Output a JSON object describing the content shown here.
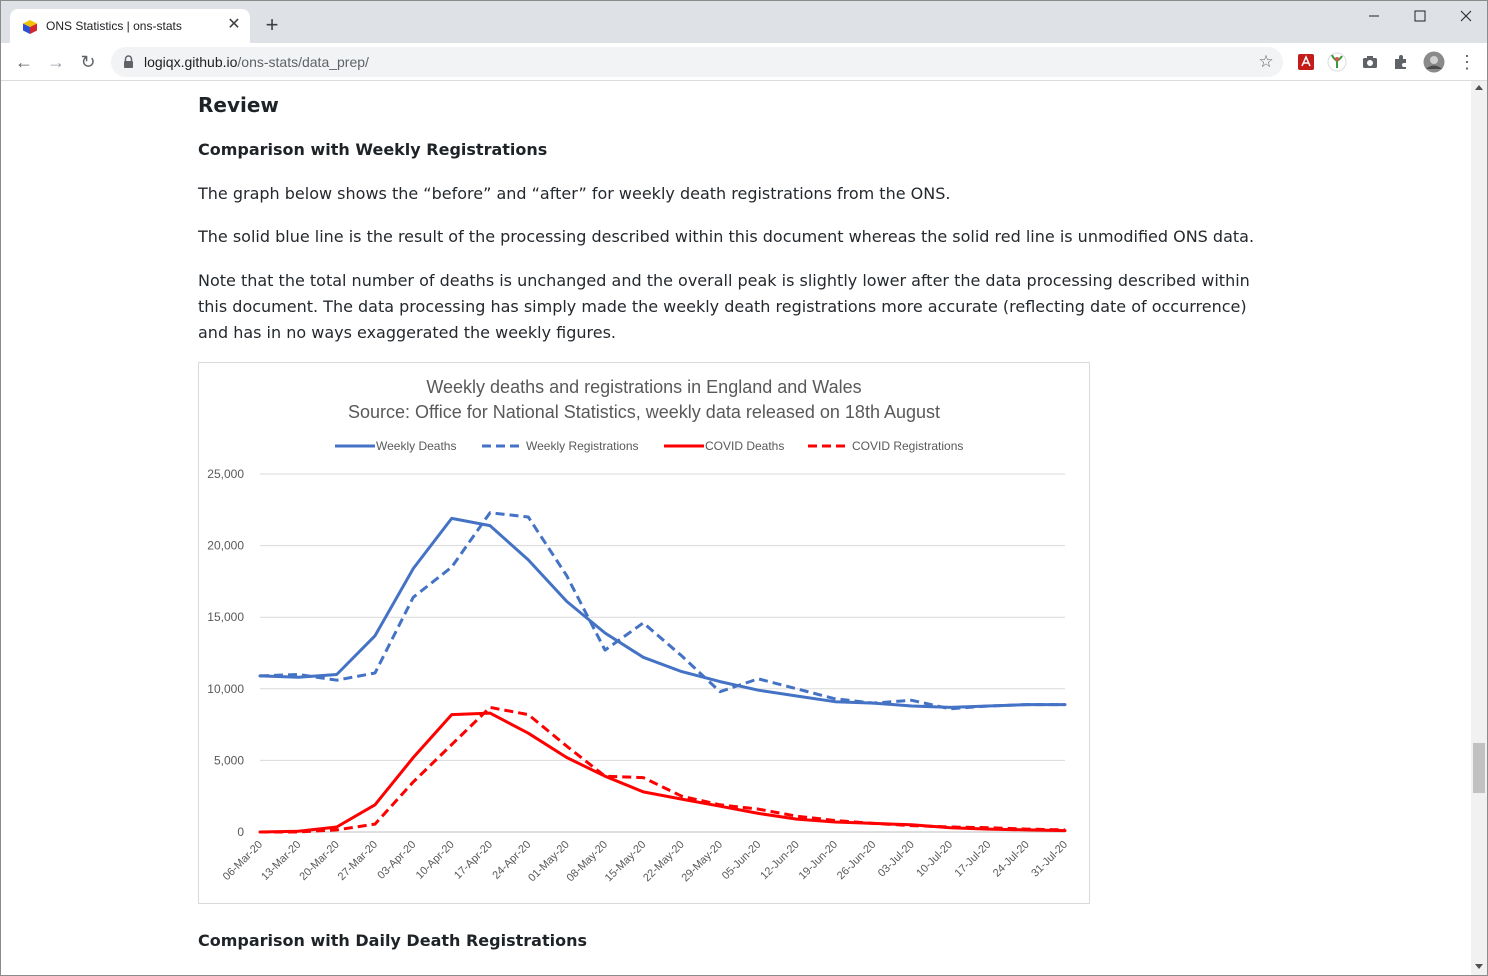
{
  "browser": {
    "tab_title": "ONS Statistics | ons-stats",
    "close_glyph": "✕",
    "new_tab_glyph": "+",
    "url_host": "logiqx.github.io",
    "url_path": "/ons-stats/data_prep/",
    "back_glyph": "←",
    "forward_glyph": "→",
    "reload_glyph": "↻",
    "star_glyph": "☆",
    "menu_glyph": "⋮",
    "min_glyph": "—",
    "max_glyph": "☐",
    "winclose_glyph": "✕",
    "extensions": [
      "pdf-extension-icon",
      "plant-extension-icon",
      "camera-extension-icon",
      "puzzle-extensions-icon",
      "profile-avatar"
    ]
  },
  "page": {
    "section_title": "Review",
    "sub1": "Comparison with Weekly Registrations",
    "p1": "The graph below shows the “before” and “after” for weekly death registrations from the ONS.",
    "p2": "The solid blue line is the result of the processing described within this document whereas the solid red line is unmodified ONS data.",
    "p3": "Note that the total number of deaths is unchanged and the overall peak is slightly lower after the data processing described within this document. The data processing has simply made the weekly death registrations more accurate (reflecting date of occurrence) and has in no ways exaggerated the weekly figures.",
    "sub2": "Comparison with Daily Death Registrations"
  },
  "chart_data": {
    "type": "line",
    "title": "Weekly deaths and registrations in England and Wales",
    "subtitle": "Source: Office for National Statistics, weekly data released on 18th August",
    "legend_position": "top",
    "grid": true,
    "ylim": [
      0,
      25000
    ],
    "yticks": [
      0,
      5000,
      10000,
      15000,
      20000,
      25000
    ],
    "ytick_labels": [
      "0",
      "5,000",
      "10,000",
      "15,000",
      "20,000",
      "25,000"
    ],
    "categories": [
      "06-Mar-20",
      "13-Mar-20",
      "20-Mar-20",
      "27-Mar-20",
      "03-Apr-20",
      "10-Apr-20",
      "17-Apr-20",
      "24-Apr-20",
      "01-May-20",
      "08-May-20",
      "15-May-20",
      "22-May-20",
      "29-May-20",
      "05-Jun-20",
      "12-Jun-20",
      "19-Jun-20",
      "26-Jun-20",
      "03-Jul-20",
      "10-Jul-20",
      "17-Jul-20",
      "24-Jul-20",
      "31-Jul-20"
    ],
    "series": [
      {
        "name": "Weekly Deaths",
        "color": "#4472c4",
        "dash": "solid",
        "values": [
          10900,
          10800,
          11000,
          13700,
          18400,
          21900,
          21400,
          19000,
          16100,
          13900,
          12200,
          11200,
          10500,
          9900,
          9500,
          9100,
          9000,
          8800,
          8700,
          8800,
          8900,
          8900
        ]
      },
      {
        "name": "Weekly Registrations",
        "color": "#4472c4",
        "dash": "dashed",
        "values": [
          10900,
          11000,
          10600,
          11100,
          16400,
          18500,
          22300,
          22000,
          17900,
          12700,
          14600,
          12300,
          9800,
          10700,
          10000,
          9300,
          9000,
          9200,
          8600,
          8800,
          8900,
          8900
        ]
      },
      {
        "name": "COVID Deaths",
        "color": "#ff0000",
        "dash": "solid",
        "values": [
          0,
          50,
          350,
          1900,
          5200,
          8200,
          8300,
          6900,
          5200,
          3900,
          2800,
          2300,
          1800,
          1300,
          900,
          700,
          600,
          500,
          300,
          200,
          150,
          100
        ]
      },
      {
        "name": "COVID Registrations",
        "color": "#ff0000",
        "dash": "dashed",
        "values": [
          0,
          0,
          150,
          550,
          3500,
          6100,
          8700,
          8200,
          6000,
          3900,
          3800,
          2500,
          1900,
          1600,
          1100,
          800,
          600,
          450,
          350,
          300,
          200,
          150
        ]
      }
    ]
  }
}
